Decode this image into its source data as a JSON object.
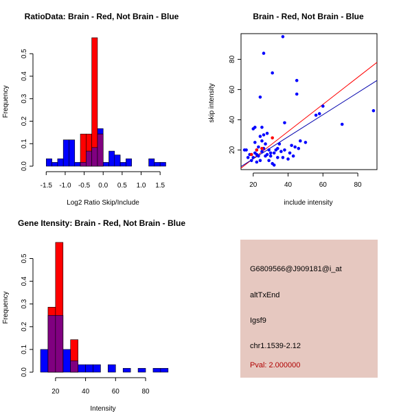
{
  "colors": {
    "brain": "#ff0000",
    "not_brain": "#0000ff",
    "overlap": "#800080",
    "panel_bg": "#e6c8c0",
    "pval_text": "#b00000"
  },
  "chart_data": [
    {
      "type": "histogram",
      "title": "RatioData: Brain - Red, Not Brain - Blue",
      "xlabel": "Log2 Ratio Skip/Include",
      "ylabel": "Frequency",
      "xlim": [
        -1.65,
        1.75
      ],
      "ylim": [
        0,
        0.58
      ],
      "xticks": [
        -1.5,
        -1.0,
        -0.5,
        0.0,
        0.5,
        1.0,
        1.5
      ],
      "xtick_labels": [
        "-1.5",
        "-1.0",
        "-0.5",
        "0.0",
        "0.5",
        "1.0",
        "1.5"
      ],
      "yticks": [
        0.0,
        0.1,
        0.2,
        0.3,
        0.4,
        0.5
      ],
      "ytick_labels": [
        "0.0",
        "0.1",
        "0.2",
        "0.3",
        "0.4",
        "0.5"
      ],
      "bin_width": 0.15,
      "series": [
        {
          "name": "Not Brain",
          "color": "#0000ff",
          "bins": [
            {
              "x0": -1.65,
              "x1": -1.5,
              "value": 0.0
            },
            {
              "x0": -1.5,
              "x1": -1.35,
              "value": 0.033
            },
            {
              "x0": -1.35,
              "x1": -1.2,
              "value": 0.017
            },
            {
              "x0": -1.2,
              "x1": -1.05,
              "value": 0.033
            },
            {
              "x0": -1.05,
              "x1": -0.9,
              "value": 0.117
            },
            {
              "x0": -0.9,
              "x1": -0.75,
              "value": 0.117
            },
            {
              "x0": -0.75,
              "x1": -0.6,
              "value": 0.017
            },
            {
              "x0": -0.6,
              "x1": -0.45,
              "value": 0.017
            },
            {
              "x0": -0.45,
              "x1": -0.3,
              "value": 0.067
            },
            {
              "x0": -0.3,
              "x1": -0.15,
              "value": 0.083
            },
            {
              "x0": -0.15,
              "x1": 0.0,
              "value": 0.167
            },
            {
              "x0": 0.0,
              "x1": 0.15,
              "value": 0.017
            },
            {
              "x0": 0.15,
              "x1": 0.3,
              "value": 0.067
            },
            {
              "x0": 0.3,
              "x1": 0.45,
              "value": 0.05
            },
            {
              "x0": 0.45,
              "x1": 0.6,
              "value": 0.017
            },
            {
              "x0": 0.6,
              "x1": 0.75,
              "value": 0.033
            },
            {
              "x0": 0.75,
              "x1": 0.9,
              "value": 0.0
            },
            {
              "x0": 0.9,
              "x1": 1.05,
              "value": 0.0
            },
            {
              "x0": 1.05,
              "x1": 1.2,
              "value": 0.0
            },
            {
              "x0": 1.2,
              "x1": 1.35,
              "value": 0.033
            },
            {
              "x0": 1.35,
              "x1": 1.5,
              "value": 0.017
            },
            {
              "x0": 1.5,
              "x1": 1.65,
              "value": 0.017
            }
          ]
        },
        {
          "name": "Brain",
          "color": "#ff0000",
          "bins": [
            {
              "x0": -0.6,
              "x1": -0.45,
              "value": 0.143
            },
            {
              "x0": -0.45,
              "x1": -0.3,
              "value": 0.143
            },
            {
              "x0": -0.3,
              "x1": -0.15,
              "value": 0.571
            },
            {
              "x0": -0.15,
              "x1": 0.0,
              "value": 0.143
            }
          ]
        }
      ]
    },
    {
      "type": "scatter",
      "title": "Brain - Red, Not Brain - Blue",
      "xlabel": "include intensity",
      "ylabel": "skip intensity",
      "xlim": [
        13,
        91
      ],
      "ylim": [
        7,
        97
      ],
      "xticks": [
        20,
        40,
        60,
        80
      ],
      "xtick_labels": [
        "20",
        "40",
        "60",
        "80"
      ],
      "yticks": [
        20,
        40,
        60,
        80
      ],
      "ytick_labels": [
        "20",
        "40",
        "60",
        "80"
      ],
      "series": [
        {
          "name": "Not Brain",
          "color": "#0000ff",
          "points": [
            [
              15,
              20
            ],
            [
              16,
              20
            ],
            [
              17,
              15
            ],
            [
              18,
              17
            ],
            [
              19,
              13
            ],
            [
              20,
              15
            ],
            [
              20,
              34
            ],
            [
              21,
              35
            ],
            [
              21,
              25
            ],
            [
              21,
              18
            ],
            [
              22,
              12
            ],
            [
              22,
              17
            ],
            [
              22,
              20
            ],
            [
              23,
              22
            ],
            [
              23,
              16
            ],
            [
              24,
              13
            ],
            [
              24,
              55
            ],
            [
              24,
              29
            ],
            [
              25,
              19
            ],
            [
              25,
              35
            ],
            [
              25,
              26
            ],
            [
              26,
              84
            ],
            [
              26,
              30
            ],
            [
              26,
              21
            ],
            [
              27,
              16
            ],
            [
              27,
              24
            ],
            [
              28,
              17
            ],
            [
              28,
              31
            ],
            [
              29,
              13
            ],
            [
              29,
              20
            ],
            [
              30,
              16
            ],
            [
              30,
              18
            ],
            [
              31,
              11
            ],
            [
              31,
              71
            ],
            [
              32,
              10
            ],
            [
              32,
              18
            ],
            [
              33,
              20
            ],
            [
              34,
              15
            ],
            [
              34,
              21
            ],
            [
              35,
              24
            ],
            [
              36,
              19
            ],
            [
              37,
              95
            ],
            [
              37,
              15
            ],
            [
              38,
              38
            ],
            [
              38,
              20
            ],
            [
              40,
              14
            ],
            [
              41,
              18
            ],
            [
              42,
              23
            ],
            [
              43,
              16
            ],
            [
              44,
              22
            ],
            [
              45,
              66
            ],
            [
              45,
              57
            ],
            [
              46,
              21
            ],
            [
              47,
              26
            ],
            [
              50,
              25
            ],
            [
              56,
              43
            ],
            [
              58,
              44
            ],
            [
              60,
              49
            ],
            [
              71,
              37
            ],
            [
              89,
              46
            ]
          ]
        },
        {
          "name": "Brain",
          "color": "#ff0000",
          "points": [
            [
              19,
              17
            ],
            [
              22,
              20
            ],
            [
              25,
              21
            ],
            [
              31,
              28
            ]
          ]
        }
      ],
      "fit_lines": [
        {
          "name": "Brain fit",
          "color": "#ff0000",
          "x": [
            13,
            91
          ],
          "y": [
            8,
            78
          ]
        },
        {
          "name": "Not Brain fit",
          "color": "#0000ac",
          "x": [
            13,
            91
          ],
          "y": [
            9,
            66
          ]
        }
      ]
    },
    {
      "type": "histogram",
      "title": "Gene Itensity: Brain - Red, Not Brain - Blue",
      "xlabel": "Intensity",
      "ylabel": "Frequency",
      "xlim": [
        10,
        96
      ],
      "ylim": [
        0,
        0.58
      ],
      "xticks": [
        20,
        40,
        60,
        80
      ],
      "xtick_labels": [
        "20",
        "40",
        "60",
        "80"
      ],
      "yticks": [
        0.0,
        0.1,
        0.2,
        0.3,
        0.4,
        0.5
      ],
      "ytick_labels": [
        "0.0",
        "0.1",
        "0.2",
        "0.3",
        "0.4",
        "0.5"
      ],
      "bin_width": 5,
      "series": [
        {
          "name": "Not Brain",
          "color": "#0000ff",
          "bins": [
            {
              "x0": 10,
              "x1": 15,
              "value": 0.1
            },
            {
              "x0": 15,
              "x1": 20,
              "value": 0.25
            },
            {
              "x0": 20,
              "x1": 25,
              "value": 0.25
            },
            {
              "x0": 25,
              "x1": 30,
              "value": 0.1
            },
            {
              "x0": 30,
              "x1": 35,
              "value": 0.05
            },
            {
              "x0": 35,
              "x1": 40,
              "value": 0.033
            },
            {
              "x0": 40,
              "x1": 45,
              "value": 0.033
            },
            {
              "x0": 45,
              "x1": 50,
              "value": 0.033
            },
            {
              "x0": 50,
              "x1": 55,
              "value": 0.0
            },
            {
              "x0": 55,
              "x1": 60,
              "value": 0.033
            },
            {
              "x0": 60,
              "x1": 65,
              "value": 0.0
            },
            {
              "x0": 65,
              "x1": 70,
              "value": 0.017
            },
            {
              "x0": 70,
              "x1": 75,
              "value": 0.0
            },
            {
              "x0": 75,
              "x1": 80,
              "value": 0.017
            },
            {
              "x0": 80,
              "x1": 85,
              "value": 0.0
            },
            {
              "x0": 85,
              "x1": 90,
              "value": 0.017
            },
            {
              "x0": 90,
              "x1": 95,
              "value": 0.017
            }
          ]
        },
        {
          "name": "Brain",
          "color": "#ff0000",
          "bins": [
            {
              "x0": 15,
              "x1": 20,
              "value": 0.286
            },
            {
              "x0": 20,
              "x1": 25,
              "value": 0.571
            },
            {
              "x0": 25,
              "x1": 30,
              "value": 0.0
            },
            {
              "x0": 30,
              "x1": 35,
              "value": 0.143
            }
          ]
        }
      ]
    }
  ],
  "info_panel": {
    "probe_id": "G6809566@J909181@i_at",
    "event_type": "altTxEnd",
    "gene_symbol": "Igsf9",
    "location": "chr1.1539-2.12",
    "pval": "Pval: 2.000000"
  }
}
